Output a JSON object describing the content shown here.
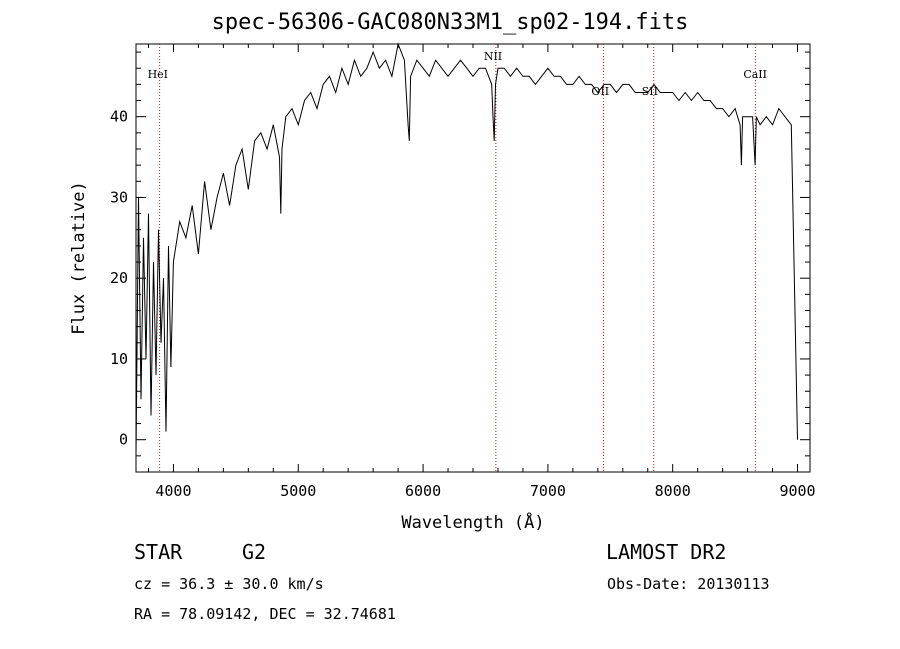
{
  "chart_data": {
    "type": "line",
    "title": "spec-56306-GAC080N33M1_sp02-194.fits",
    "xlabel": "Wavelength (Å)",
    "ylabel": "Flux (relative)",
    "xlim": [
      3700,
      9100
    ],
    "ylim": [
      -4,
      49
    ],
    "xticks": [
      4000,
      5000,
      6000,
      7000,
      8000,
      9000
    ],
    "xtick_labels": [
      "4000",
      "5000",
      "6000",
      "7000",
      "8000",
      "9000"
    ],
    "yticks": [
      0,
      10,
      20,
      30,
      40
    ],
    "ytick_labels": [
      "0",
      "10",
      "20",
      "30",
      "40"
    ],
    "series": [
      {
        "name": "spectrum",
        "x": [
          3700,
          3720,
          3740,
          3760,
          3780,
          3800,
          3820,
          3840,
          3860,
          3880,
          3900,
          3920,
          3940,
          3960,
          3980,
          4000,
          4050,
          4100,
          4150,
          4200,
          4250,
          4300,
          4350,
          4400,
          4450,
          4500,
          4550,
          4600,
          4650,
          4700,
          4750,
          4800,
          4850,
          4860,
          4870,
          4900,
          4950,
          5000,
          5050,
          5100,
          5150,
          5200,
          5250,
          5300,
          5350,
          5400,
          5450,
          5500,
          5550,
          5600,
          5650,
          5700,
          5750,
          5800,
          5850,
          5880,
          5890,
          5900,
          5950,
          6000,
          6050,
          6100,
          6150,
          6200,
          6250,
          6300,
          6350,
          6400,
          6450,
          6500,
          6550,
          6560,
          6570,
          6580,
          6600,
          6650,
          6700,
          6750,
          6800,
          6850,
          6900,
          6950,
          7000,
          7050,
          7100,
          7150,
          7200,
          7250,
          7300,
          7350,
          7400,
          7450,
          7500,
          7550,
          7600,
          7650,
          7700,
          7750,
          7800,
          7850,
          7900,
          7950,
          8000,
          8050,
          8100,
          8150,
          8200,
          8250,
          8300,
          8350,
          8400,
          8450,
          8500,
          8540,
          8550,
          8560,
          8580,
          8600,
          8640,
          8660,
          8670,
          8700,
          8750,
          8800,
          8850,
          8900,
          8950,
          9000
        ],
        "y": [
          -2,
          30,
          5,
          25,
          10,
          28,
          3,
          22,
          8,
          26,
          12,
          20,
          1,
          24,
          9,
          22,
          27,
          25,
          29,
          23,
          32,
          26,
          30,
          33,
          29,
          34,
          36,
          31,
          37,
          38,
          36,
          39,
          35,
          28,
          36,
          40,
          41,
          39,
          42,
          43,
          41,
          44,
          45,
          43,
          46,
          44,
          47,
          45,
          46,
          48,
          46,
          47,
          45,
          49,
          47,
          39,
          37,
          45,
          47,
          46,
          45,
          47,
          46,
          45,
          46,
          47,
          46,
          45,
          46,
          46,
          44,
          40,
          37,
          44,
          46,
          46,
          45,
          46,
          45,
          45,
          44,
          45,
          46,
          45,
          45,
          44,
          44,
          45,
          44,
          44,
          43,
          44,
          44,
          43,
          44,
          44,
          43,
          43,
          43,
          44,
          43,
          43,
          43,
          42,
          43,
          42,
          43,
          42,
          42,
          41,
          41,
          40,
          41,
          39,
          34,
          40,
          40,
          40,
          40,
          34,
          40,
          39,
          40,
          39,
          41,
          40,
          39,
          0
        ]
      }
    ],
    "lines": [
      {
        "label": "HeI",
        "x": 3889
      },
      {
        "label": "NII",
        "x": 6583
      },
      {
        "label": "OII",
        "x": 7445
      },
      {
        "label": "SII",
        "x": 7848
      },
      {
        "label": "CaII",
        "x": 8662
      }
    ]
  },
  "info": {
    "object_type": "STAR",
    "subclass": "G2",
    "survey": "LAMOST DR2",
    "cz": "cz = 36.3 ± 30.0 km/s",
    "obs_date": "Obs-Date: 20130113",
    "radec": "RA =  78.09142, DEC =  32.74681"
  },
  "colors": {
    "axis": "#000000",
    "spectrum": "#000000",
    "line_marker": "#b22222"
  }
}
